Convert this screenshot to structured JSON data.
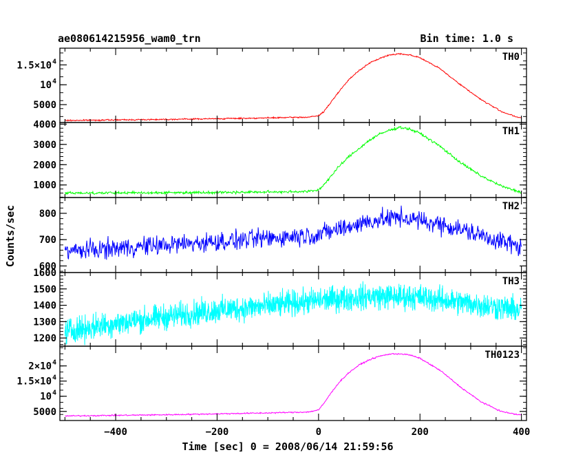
{
  "chart_data": {
    "type": "line",
    "title": "ae080614215956_wam0_trn",
    "subtitle": "Bin time: 1.0 s",
    "xlabel": "Time [sec] 0 = 2008/06/14 21:59:56",
    "ylabel": "Counts/sec",
    "xlim": [
      -510,
      410
    ],
    "xticks": [
      "−400",
      "−200",
      "0",
      "200",
      "400"
    ],
    "xtick_values": [
      -400,
      -200,
      0,
      200,
      400
    ],
    "grid": false,
    "panels": [
      {
        "name": "TH0",
        "color": "#ff0000",
        "ylim": [
          500,
          19200
        ],
        "noise": 120,
        "yticks": [
          {
            "value": 5000,
            "label": "5000",
            "exp": ""
          },
          {
            "value": 10000,
            "label": "10",
            "exp": "4"
          },
          {
            "value": 15000,
            "label": "1.5×10",
            "exp": "4"
          }
        ],
        "x": [
          -500,
          -400,
          -300,
          -200,
          -100,
          -20,
          0,
          10,
          20,
          40,
          60,
          80,
          100,
          120,
          140,
          160,
          180,
          200,
          240,
          280,
          320,
          360,
          390,
          400
        ],
        "y": [
          1000,
          1150,
          1300,
          1450,
          1650,
          1850,
          2200,
          3200,
          4800,
          8300,
          11300,
          13600,
          15400,
          16600,
          17500,
          17800,
          17500,
          16800,
          14000,
          10000,
          6300,
          3300,
          1900,
          1600
        ]
      },
      {
        "name": "TH1",
        "color": "#00ff00",
        "ylim": [
          380,
          4080
        ],
        "noise": 45,
        "yticks": [
          {
            "value": 1000,
            "label": "1000",
            "exp": ""
          },
          {
            "value": 2000,
            "label": "2000",
            "exp": ""
          },
          {
            "value": 3000,
            "label": "3000",
            "exp": ""
          },
          {
            "value": 4000,
            "label": "4000",
            "exp": ""
          }
        ],
        "x": [
          -500,
          -300,
          -100,
          -20,
          0,
          10,
          20,
          40,
          60,
          80,
          100,
          120,
          140,
          160,
          180,
          200,
          240,
          280,
          320,
          360,
          390,
          400
        ],
        "y": [
          600,
          620,
          650,
          680,
          750,
          1000,
          1300,
          1900,
          2400,
          2800,
          3200,
          3500,
          3700,
          3850,
          3750,
          3550,
          2900,
          2100,
          1450,
          950,
          700,
          650
        ]
      },
      {
        "name": "TH2",
        "color": "#0000ff",
        "ylim": [
          575,
          860
        ],
        "noise": 26,
        "yticks": [
          {
            "value": 600,
            "label": "600",
            "exp": ""
          },
          {
            "value": 700,
            "label": "700",
            "exp": ""
          },
          {
            "value": 800,
            "label": "800",
            "exp": ""
          }
        ],
        "x": [
          -500,
          -300,
          -100,
          0,
          100,
          160,
          250,
          350,
          400
        ],
        "y": [
          655,
          680,
          705,
          720,
          770,
          785,
          755,
          700,
          670
        ]
      },
      {
        "name": "TH3",
        "color": "#00ffff",
        "ylim": [
          1150,
          1600
        ],
        "noise": 55,
        "yticks": [
          {
            "value": 1200,
            "label": "1200",
            "exp": ""
          },
          {
            "value": 1300,
            "label": "1300",
            "exp": ""
          },
          {
            "value": 1400,
            "label": "1400",
            "exp": ""
          },
          {
            "value": 1500,
            "label": "1500",
            "exp": ""
          },
          {
            "value": 1600,
            "label": "1600",
            "exp": ""
          }
        ],
        "x": [
          -500,
          -400,
          -300,
          -200,
          -100,
          0,
          100,
          200,
          300,
          400
        ],
        "y": [
          1240,
          1290,
          1330,
          1370,
          1395,
          1430,
          1455,
          1450,
          1410,
          1370
        ]
      },
      {
        "name": "TH0123",
        "color": "#ff00ff",
        "ylim": [
          2000,
          26500
        ],
        "noise": 150,
        "yticks": [
          {
            "value": 5000,
            "label": "5000",
            "exp": ""
          },
          {
            "value": 10000,
            "label": "10",
            "exp": "4"
          },
          {
            "value": 15000,
            "label": "1.5×10",
            "exp": "4"
          },
          {
            "value": 20000,
            "label": "2×10",
            "exp": "4"
          }
        ],
        "x": [
          -500,
          -400,
          -300,
          -200,
          -100,
          -20,
          0,
          10,
          20,
          40,
          60,
          80,
          100,
          120,
          140,
          160,
          180,
          200,
          240,
          280,
          320,
          360,
          390,
          400
        ],
        "y": [
          3500,
          3700,
          3900,
          4200,
          4500,
          4800,
          5500,
          7500,
          10000,
          14500,
          17800,
          20300,
          22000,
          23200,
          23900,
          24000,
          23600,
          22500,
          18500,
          13000,
          8200,
          5000,
          4000,
          3900
        ]
      }
    ]
  }
}
